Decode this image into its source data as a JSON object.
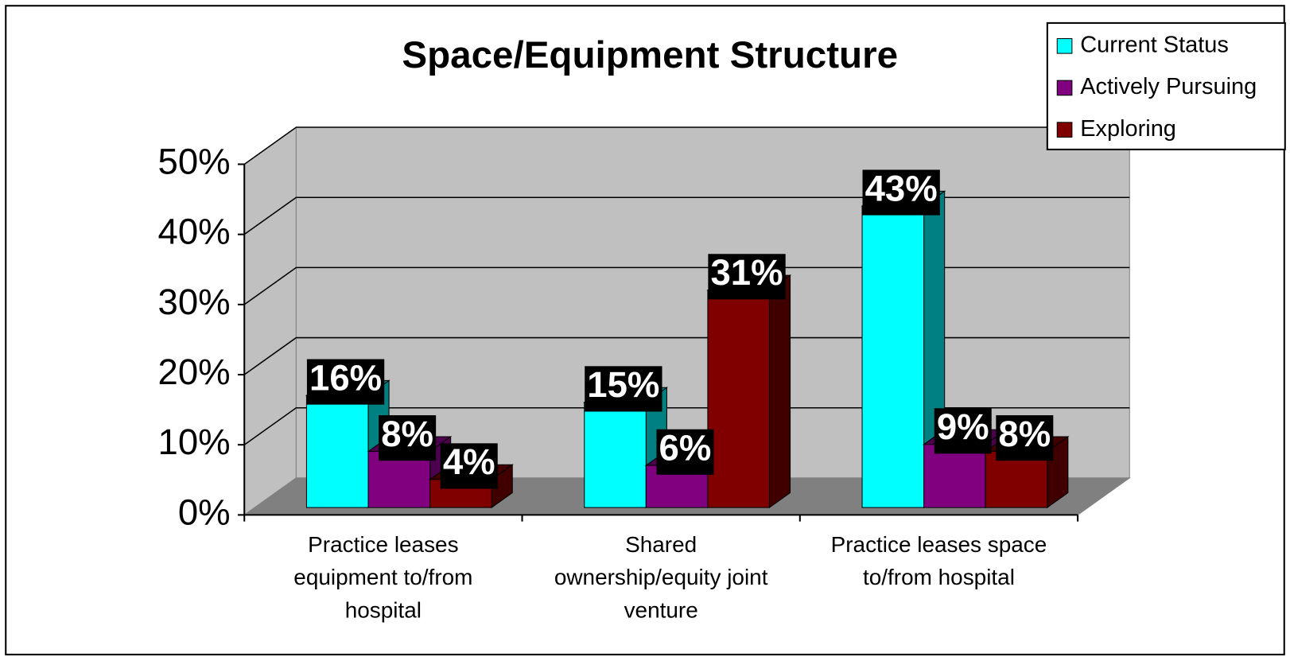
{
  "chart_data": {
    "type": "bar3d",
    "title": "Space/Equipment Structure",
    "categories": [
      "Practice leases equipment to/from hospital",
      "Shared ownership/equity joint venture",
      "Practice leases space to/from hospital"
    ],
    "series": [
      {
        "name": "Current Status",
        "color": "#00ffff",
        "side": "#008080",
        "values": [
          16,
          15,
          43
        ],
        "value_labels": [
          "16%",
          "15%",
          "43%"
        ]
      },
      {
        "name": "Actively Pursuing",
        "color": "#800080",
        "side": "#4d004d",
        "values": [
          8,
          6,
          9
        ],
        "value_labels": [
          "8%",
          "6%",
          "9%"
        ]
      },
      {
        "name": "Exploring",
        "color": "#800000",
        "side": "#400000",
        "values": [
          4,
          31,
          8
        ],
        "value_labels": [
          "4%",
          "31%",
          "8%"
        ]
      }
    ],
    "ylim": [
      0,
      50
    ],
    "yticks": [
      {
        "value": 0,
        "label": "0%"
      },
      {
        "value": 10,
        "label": "10%"
      },
      {
        "value": 20,
        "label": "20%"
      },
      {
        "value": 30,
        "label": "30%"
      },
      {
        "value": 40,
        "label": "40%"
      },
      {
        "value": 50,
        "label": "50%"
      }
    ],
    "grid": true,
    "legend": "top-right"
  }
}
